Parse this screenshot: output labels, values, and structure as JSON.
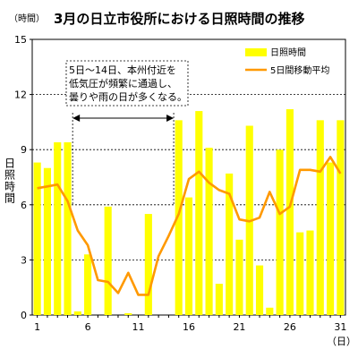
{
  "chart_data": {
    "type": "bar",
    "title": "3月の日立市役所における日照時間の推移",
    "unit_top": "（時間）",
    "ylabel": "日照時間",
    "x_unit": "（日）",
    "ylim": [
      0,
      15
    ],
    "yticks": [
      0,
      3,
      6,
      9,
      12,
      15
    ],
    "xticks": [
      1,
      6,
      11,
      16,
      21,
      26,
      31
    ],
    "grid": "horizontal-dashed",
    "legend_position": "top-right",
    "colors": {
      "bar": "#ffff00",
      "line": "#ff9900"
    },
    "x": [
      1,
      2,
      3,
      4,
      5,
      6,
      7,
      8,
      9,
      10,
      11,
      12,
      13,
      14,
      15,
      16,
      17,
      18,
      19,
      20,
      21,
      22,
      23,
      24,
      25,
      26,
      27,
      28,
      29,
      30,
      31
    ],
    "series": [
      {
        "name": "日照時間",
        "type": "bar",
        "values": [
          8.3,
          8.0,
          9.4,
          9.4,
          0.2,
          3.3,
          0.0,
          5.9,
          0.0,
          0.1,
          0.0,
          5.5,
          0.0,
          0.0,
          10.6,
          6.4,
          11.1,
          9.1,
          1.7,
          7.7,
          4.1,
          10.3,
          2.7,
          0.4,
          9.0,
          11.2,
          4.5,
          4.6,
          10.6,
          8.3,
          10.6
        ]
      },
      {
        "name": "5日間移動平均",
        "type": "line",
        "values": [
          6.9,
          7.0,
          7.1,
          6.2,
          4.6,
          3.8,
          1.9,
          1.8,
          1.2,
          2.3,
          1.1,
          1.1,
          3.2,
          4.3,
          5.5,
          7.4,
          7.8,
          7.2,
          6.8,
          6.6,
          5.2,
          5.1,
          5.3,
          6.7,
          5.5,
          5.9,
          7.9,
          7.9,
          7.8,
          8.6,
          7.7
        ]
      }
    ],
    "annotation": {
      "lines": [
        "5日～14日、本州付近を",
        "低気圧が頻繁に通過し、",
        "曇りや雨の日が多くなる。"
      ],
      "range": [
        5,
        14
      ]
    }
  }
}
